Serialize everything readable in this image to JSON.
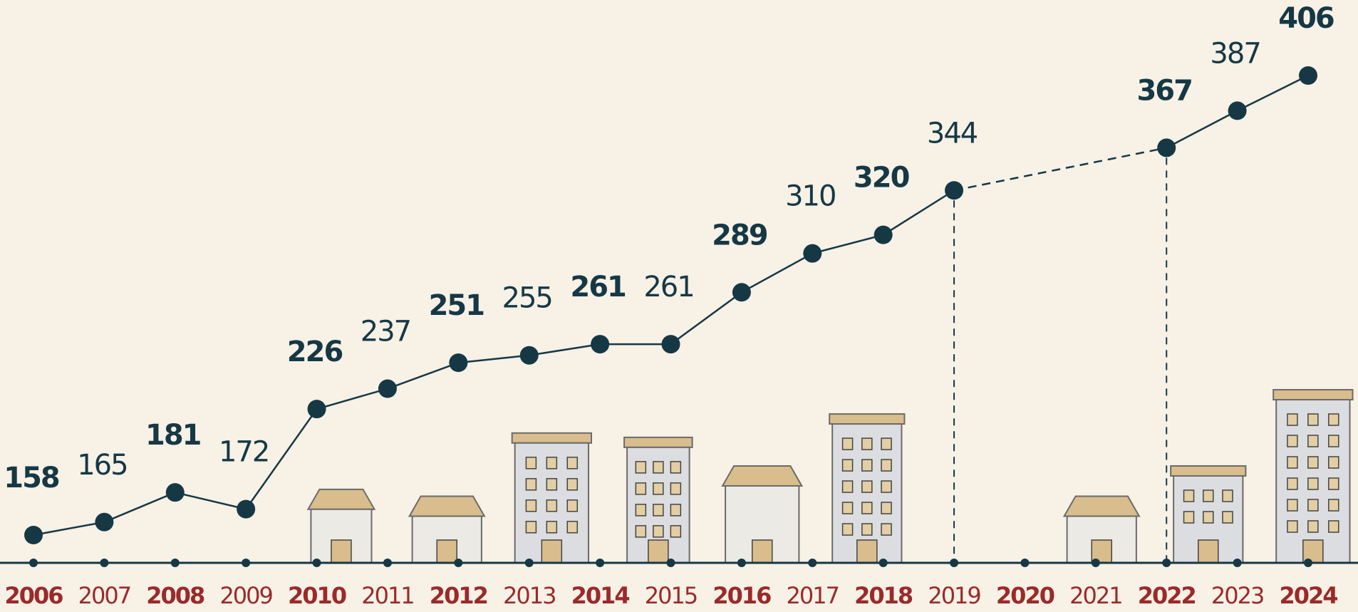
{
  "chart_data": {
    "type": "line",
    "categories": [
      "2006",
      "2007",
      "2008",
      "2009",
      "2010",
      "2011",
      "2012",
      "2013",
      "2014",
      "2015",
      "2016",
      "2017",
      "2018",
      "2019",
      "2020",
      "2021",
      "2022",
      "2023",
      "2024"
    ],
    "series": [
      {
        "color": "#163845",
        "values": [
          158,
          165,
          181,
          172,
          226,
          237,
          251,
          255,
          261,
          261,
          289,
          310,
          320,
          344,
          null,
          null,
          367,
          387,
          406
        ]
      }
    ]
  }
}
